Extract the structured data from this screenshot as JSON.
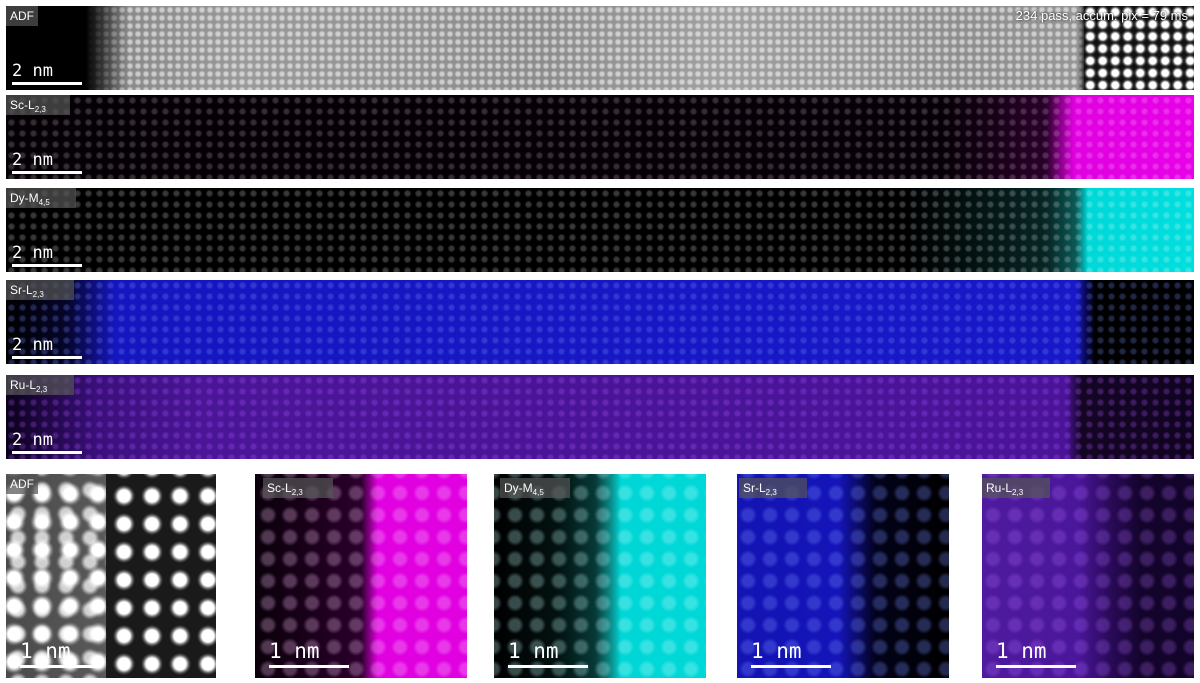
{
  "info_text": "234 pass, accum. pix = 79 ms",
  "strips": [
    {
      "label": "ADF",
      "scale": "2 nm",
      "color": "#9a9a9a"
    },
    {
      "label": "Sc-L",
      "sub": "2,3",
      "scale": "2 nm",
      "color": "#e000e0"
    },
    {
      "label": "Dy-M",
      "sub": "4,5",
      "scale": "2 nm",
      "color": "#00d8d8"
    },
    {
      "label": "Sr-L",
      "sub": "2,3",
      "scale": "2 nm",
      "color": "#1818c8"
    },
    {
      "label": "Ru-L",
      "sub": "2,3",
      "scale": "2 nm",
      "color": "#4b1597"
    }
  ],
  "tiles": [
    {
      "label": "ADF",
      "scale": "1 nm"
    },
    {
      "label": "Sc-L",
      "sub": "2,3",
      "scale": "1 nm"
    },
    {
      "label": "Dy-M",
      "sub": "4,5",
      "scale": "1 nm"
    },
    {
      "label": "Sr-L",
      "sub": "2,3",
      "scale": "1 nm"
    },
    {
      "label": "Ru-L",
      "sub": "2,3",
      "scale": "1 nm"
    }
  ]
}
